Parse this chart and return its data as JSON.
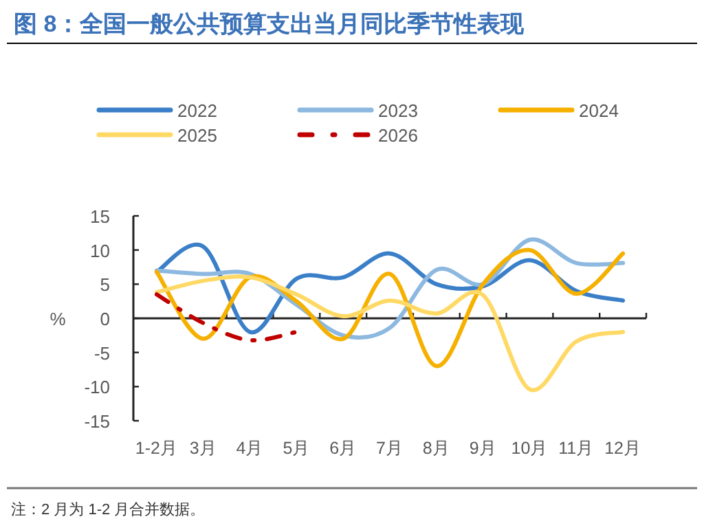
{
  "chart_data": {
    "type": "line",
    "title": "图 8：全国一般公共预算支出当月同比季节性表现",
    "ylabel": "%",
    "categories": [
      "1-2月",
      "3月",
      "4月",
      "5月",
      "6月",
      "7月",
      "8月",
      "9月",
      "10月",
      "11月",
      "12月"
    ],
    "series": [
      {
        "name": "2022",
        "color": "#3a7fc8",
        "values": [
          6.8,
          10.5,
          -2,
          5.8,
          6,
          9.5,
          5,
          4.7,
          8.5,
          4,
          2.6
        ]
      },
      {
        "name": "2023",
        "color": "#8db8e0",
        "values": [
          7,
          6.5,
          6.5,
          2,
          -2.5,
          -1.4,
          7.1,
          5,
          11.5,
          8.1,
          8.1
        ]
      },
      {
        "name": "2024",
        "color": "#f5b000",
        "values": [
          6.8,
          -3,
          6,
          2.5,
          -3,
          6.5,
          -7,
          5,
          10,
          3.6,
          9.5
        ]
      },
      {
        "name": "2025",
        "color": "#ffd966",
        "values": [
          3.8,
          5.5,
          6,
          3.5,
          0.3,
          2.6,
          0.7,
          3.4,
          -10.4,
          -3.4,
          -2
        ]
      },
      {
        "name": "2026",
        "color": "#c00000",
        "line_style": "dashed",
        "values": [
          3.5,
          -0.7,
          -3.2,
          -2,
          null,
          null,
          null,
          null,
          null,
          null,
          null
        ]
      }
    ],
    "ylim": [
      -15,
      15
    ],
    "yticks": [
      -15,
      -10,
      -5,
      0,
      5,
      10,
      15
    ],
    "legend": "top",
    "annotations": [
      "注：2 月为 1-2 月合并数据。"
    ]
  }
}
